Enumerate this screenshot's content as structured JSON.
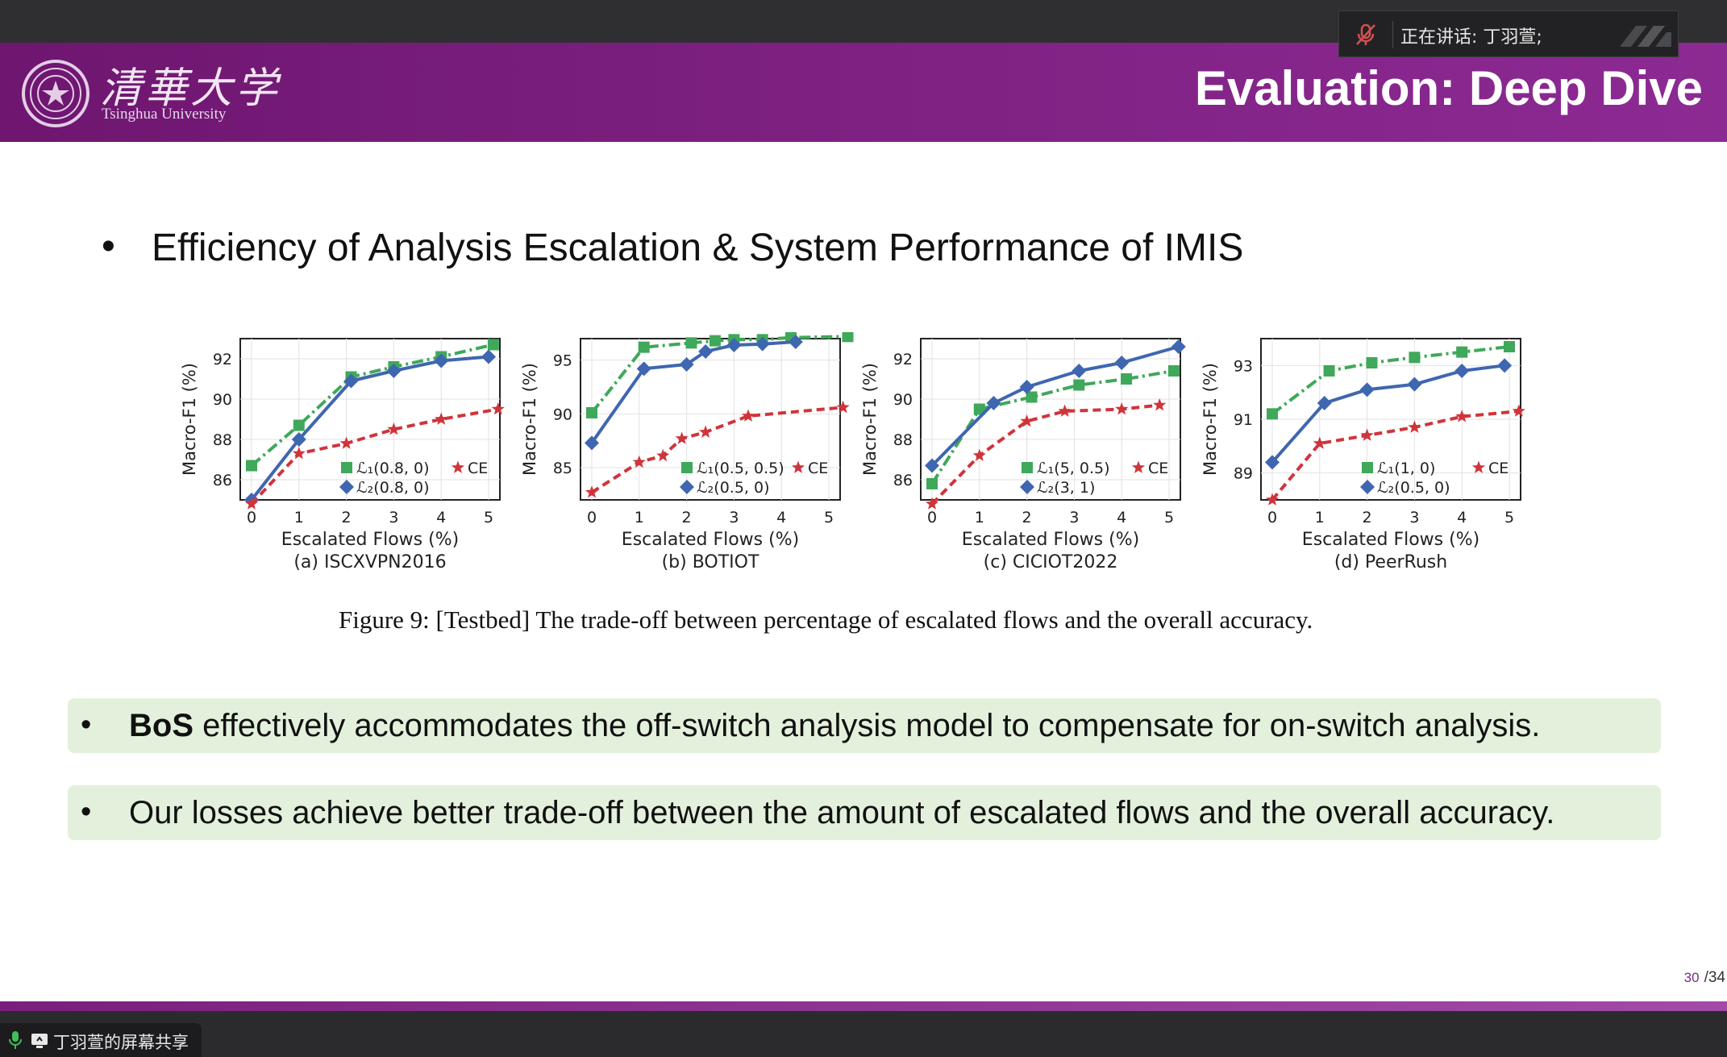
{
  "speaker": {
    "label": "正在讲话:",
    "name": "丁羽萱;"
  },
  "header": {
    "logo_cn": "清華大学",
    "logo_en": "Tsinghua University",
    "title": "Evaluation: Deep Dive"
  },
  "main_bullet": "Efficiency of Analysis Escalation & System Performance of IMIS",
  "figure_caption": "Figure 9:  [Testbed] The trade-off between percentage of escalated flows and the overall accuracy.",
  "highlights": [
    {
      "bold": "BoS",
      "text": " effectively accommodates the off-switch analysis model to compensate for on-switch analysis."
    },
    {
      "bold": "",
      "text": "Our losses achieve better trade-off between the amount of escalated flows and the overall accuracy."
    }
  ],
  "page": {
    "current": "30",
    "total": "/34"
  },
  "share": {
    "label": "丁羽萱的屏幕共享"
  },
  "colors": {
    "series1": "#3fa85a",
    "series2": "#3f66b0",
    "series3": "#d0343b",
    "banner": "#7d2080",
    "highlight": "#e3f1dc"
  },
  "chart_data": [
    {
      "type": "line",
      "title": "(a) ISCXVPN2016",
      "xlabel": "Escalated Flows (%)",
      "ylabel": "Macro-F1 (%)",
      "ylim": [
        85,
        93
      ],
      "yticks": [
        86,
        88,
        90,
        92
      ],
      "xticks": [
        0,
        1,
        2,
        3,
        4,
        5
      ],
      "legend": [
        "ℒ₁(0.8, 0)",
        "CE",
        "ℒ₂(0.8, 0)"
      ],
      "series": [
        {
          "name": "ℒ₁(0.8, 0)",
          "color": "#3fa85a",
          "x": [
            0,
            1,
            2.1,
            3,
            4,
            5.1
          ],
          "values": [
            86.7,
            88.7,
            91.1,
            91.6,
            92.1,
            92.7
          ]
        },
        {
          "name": "ℒ₂(0.8, 0)",
          "color": "#3f66b0",
          "x": [
            0,
            1,
            2.1,
            3,
            4,
            5
          ],
          "values": [
            85.0,
            88.0,
            90.9,
            91.4,
            91.9,
            92.1
          ]
        },
        {
          "name": "CE",
          "color": "#d0343b",
          "x": [
            0,
            1,
            2,
            3,
            4,
            5.2
          ],
          "values": [
            84.8,
            87.3,
            87.8,
            88.5,
            89.0,
            89.5
          ]
        }
      ]
    },
    {
      "type": "line",
      "title": "(b) BOTIOT",
      "xlabel": "Escalated Flows (%)",
      "ylabel": "Macro-F1 (%)",
      "ylim": [
        82,
        97
      ],
      "yticks": [
        85,
        90,
        95
      ],
      "xticks": [
        0,
        1,
        2,
        3,
        4,
        5
      ],
      "legend": [
        "ℒ₁(0.5, 0.5)",
        "CE",
        "ℒ₂(0.5, 0)"
      ],
      "series": [
        {
          "name": "ℒ₁(0.5, 0.5)",
          "color": "#3fa85a",
          "x": [
            0,
            1.1,
            2.1,
            2.6,
            3,
            3.6,
            4.2,
            5.4
          ],
          "values": [
            90.1,
            96.2,
            96.6,
            96.8,
            96.9,
            96.9,
            97.1,
            97.2
          ]
        },
        {
          "name": "ℒ₂(0.5, 0)",
          "color": "#3f66b0",
          "x": [
            0,
            1.1,
            2,
            2.4,
            3,
            3.6,
            4.3
          ],
          "values": [
            87.3,
            94.2,
            94.6,
            95.8,
            96.4,
            96.5,
            96.7
          ]
        },
        {
          "name": "CE",
          "color": "#d0343b",
          "x": [
            0,
            1,
            1.5,
            1.9,
            2.4,
            3.3,
            5.3
          ],
          "values": [
            82.7,
            85.5,
            86.1,
            87.7,
            88.3,
            89.8,
            90.6
          ]
        }
      ]
    },
    {
      "type": "line",
      "title": "(c) CICIOT2022",
      "xlabel": "Escalated Flows (%)",
      "ylabel": "Macro-F1 (%)",
      "ylim": [
        85,
        93
      ],
      "yticks": [
        86,
        88,
        90,
        92
      ],
      "xticks": [
        0,
        1,
        2,
        3,
        4,
        5
      ],
      "legend": [
        "ℒ₁(5, 0.5)",
        "CE",
        "ℒ₂(3, 1)"
      ],
      "series": [
        {
          "name": "ℒ₁(5, 0.5)",
          "color": "#3fa85a",
          "x": [
            0,
            1,
            2.1,
            3.1,
            4.1,
            5.1
          ],
          "values": [
            85.8,
            89.5,
            90.1,
            90.7,
            91.0,
            91.4
          ]
        },
        {
          "name": "ℒ₂(3, 1)",
          "color": "#3f66b0",
          "x": [
            0,
            1.3,
            2,
            3.1,
            4,
            5.2
          ],
          "values": [
            86.7,
            89.8,
            90.6,
            91.4,
            91.8,
            92.6
          ]
        },
        {
          "name": "CE",
          "color": "#d0343b",
          "x": [
            0,
            1,
            2,
            2.8,
            4,
            4.8
          ],
          "values": [
            84.8,
            87.2,
            88.9,
            89.4,
            89.5,
            89.7
          ]
        }
      ]
    },
    {
      "type": "line",
      "title": "(d) PeerRush",
      "xlabel": "Escalated Flows (%)",
      "ylabel": "Macro-F1 (%)",
      "ylim": [
        88,
        94
      ],
      "yticks": [
        89,
        91,
        93
      ],
      "xticks": [
        0,
        1,
        2,
        3,
        4,
        5
      ],
      "legend": [
        "ℒ₁(1, 0)",
        "CE",
        "ℒ₂(0.5, 0)"
      ],
      "series": [
        {
          "name": "ℒ₁(1, 0)",
          "color": "#3fa85a",
          "x": [
            0,
            1.2,
            2.1,
            3,
            4,
            5
          ],
          "values": [
            91.2,
            92.8,
            93.1,
            93.3,
            93.5,
            93.7
          ]
        },
        {
          "name": "ℒ₂(0.5, 0)",
          "color": "#3f66b0",
          "x": [
            0,
            1.1,
            2,
            3,
            4,
            4.9
          ],
          "values": [
            89.4,
            91.6,
            92.1,
            92.3,
            92.8,
            93.0
          ]
        },
        {
          "name": "CE",
          "color": "#d0343b",
          "x": [
            0,
            1,
            2,
            3,
            4,
            5.2
          ],
          "values": [
            88.0,
            90.1,
            90.4,
            90.7,
            91.1,
            91.3
          ]
        }
      ]
    }
  ]
}
